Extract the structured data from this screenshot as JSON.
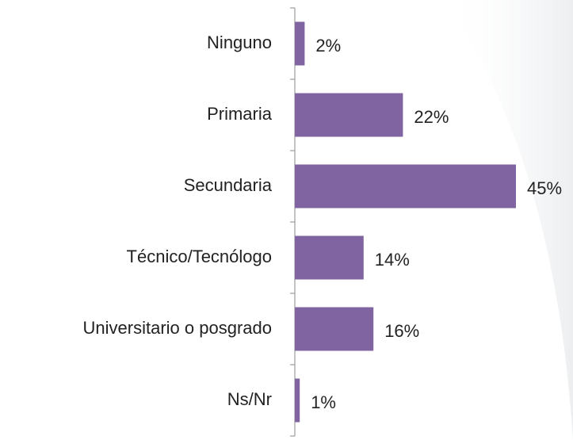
{
  "chart_data": {
    "type": "barh",
    "categories": [
      "Ninguno",
      "Primaria",
      "Secundaria",
      "Técnico/Tecnólogo",
      "Universitario o posgrado",
      "Ns/Nr"
    ],
    "values": [
      2,
      22,
      45,
      14,
      16,
      1
    ],
    "value_labels": [
      "2%",
      "22%",
      "45%",
      "14%",
      "16%",
      "1%"
    ],
    "color": "#8064a2"
  }
}
